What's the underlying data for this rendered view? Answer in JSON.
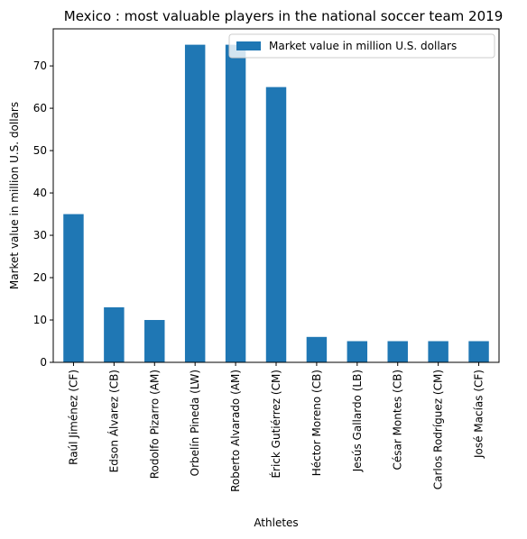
{
  "chart_data": {
    "type": "bar",
    "title": "Mexico : most valuable players in the national soccer team 2019",
    "xlabel": "Athletes",
    "ylabel": "Market value in million U.S. dollars",
    "categories": [
      "Raúl Jiménez (CF)",
      "Edson Álvarez (CB)",
      "Rodolfo Pizarro (AM)",
      "Orbelín Pineda (LW)",
      "Roberto Alvarado (AM)",
      "Érick Gutiérrez (CM)",
      "Héctor Moreno (CB)",
      "Jesús Gallardo (LB)",
      "César Montes (CB)",
      "Carlos Rodríguez (CM)",
      "José Macías (CF)"
    ],
    "series": [
      {
        "name": "Market value in million U.S. dollars",
        "values": [
          35,
          13,
          10,
          75,
          75,
          65,
          6,
          5,
          5,
          5,
          5
        ],
        "color": "#1f77b4"
      }
    ],
    "yticks": [
      0,
      10,
      20,
      30,
      40,
      50,
      60,
      70
    ],
    "ylim": [
      0,
      78.75
    ],
    "grid": false,
    "legend_position": "top-right"
  }
}
